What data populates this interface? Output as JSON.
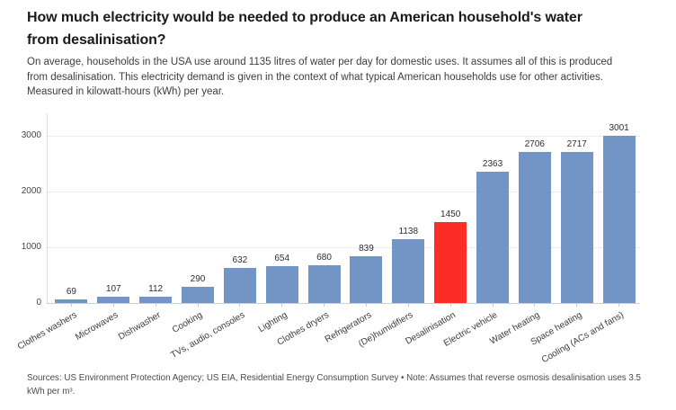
{
  "header": {
    "title_lines": [
      "How much electricity would be needed to produce an American household's water",
      "from desalinisation?"
    ],
    "subtitle_lines": [
      "On average, households in the USA use around 1135 litres of water per day for domestic uses. It assumes all of this is produced",
      "from desalinisation. This electricity demand is given in the context of what typical American households use for other activities.",
      "Measured in kilowatt-hours (kWh) per year."
    ]
  },
  "chart_data": {
    "type": "bar",
    "title": "How much electricity would be needed to produce an American household's water from desalinisation?",
    "unit": "kilowatt-hours (kWh) per year",
    "categories": [
      "Clothes washers",
      "Microwaves",
      "Dishwasher",
      "Cooking",
      "TVs, audio, consoles",
      "Lighting",
      "Clothes dryers",
      "Refrigerators",
      "(De)humidifiers",
      "Desalinisation",
      "Electric vehicle",
      "Water heating",
      "Space heating",
      "Cooling (ACs and fans)"
    ],
    "values": [
      69,
      107,
      112,
      290,
      632,
      654,
      680,
      839,
      1138,
      1450,
      2363,
      2706,
      2717,
      3001
    ],
    "value_labels": true,
    "bar_color": "#7295c6",
    "highlight": {
      "category": "Desalinisation",
      "color": "#fc2d26"
    },
    "yticks": [
      0,
      1000,
      2000,
      3000
    ],
    "ylim": [
      0,
      3100
    ],
    "grid": "horizontal-dotted",
    "legend": "none",
    "xlabel": "",
    "ylabel": ""
  },
  "footer": {
    "lines": [
      "Sources: US Environment Protection Agency; US EIA, Residential Energy Consumption Survey • Note: Assumes that reverse osmosis desalinisation uses 3.5",
      "kWh per m³."
    ]
  }
}
